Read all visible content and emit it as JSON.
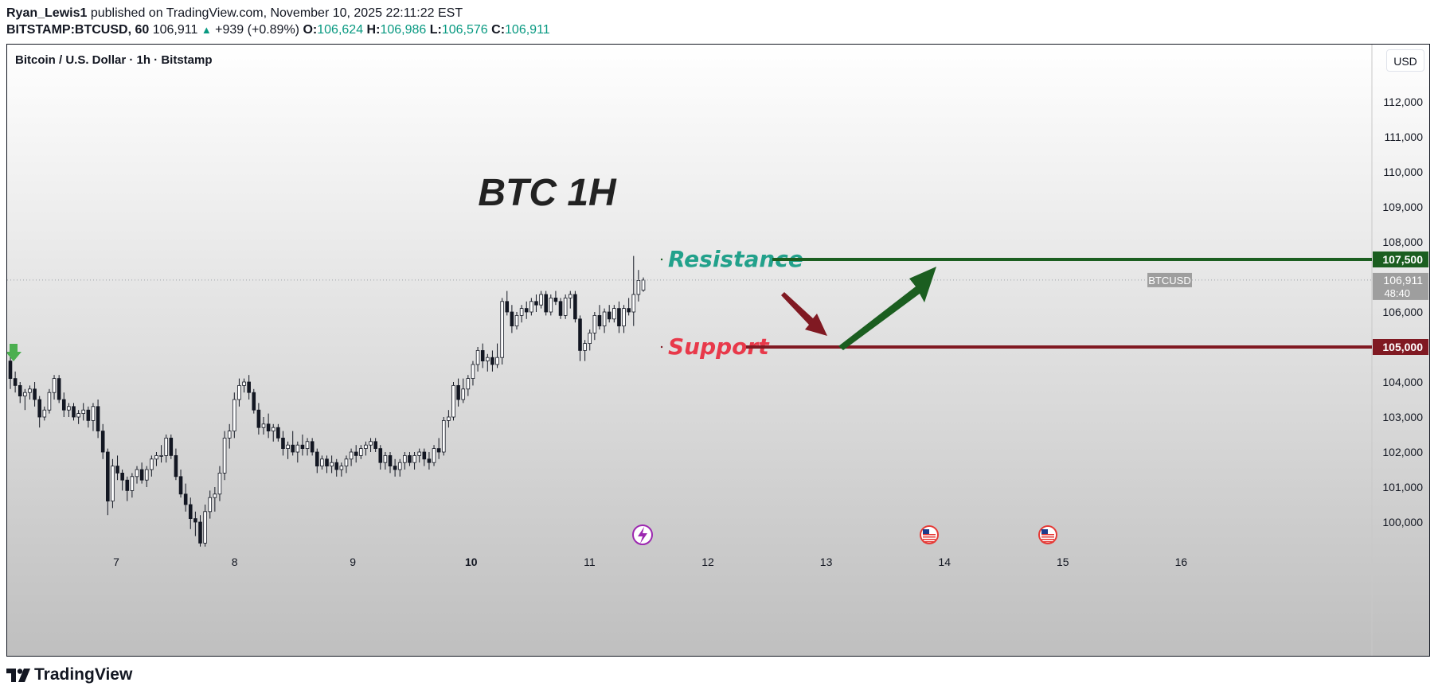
{
  "header": {
    "publisher": "Ryan_Lewis1",
    "published_text": "published on TradingView.com, November 10, 2025 22:11:22 EST",
    "symbol": "BITSTAMP:BTCUSD, 60",
    "last": "106,911",
    "change": "+939 (+0.89%)",
    "o_label": "O:",
    "o_value": "106,624",
    "h_label": "H:",
    "h_value": "106,986",
    "l_label": "L:",
    "l_value": "106,576",
    "c_label": "C:",
    "c_value": "106,911"
  },
  "chart_title": "Bitcoin / U.S. Dollar · 1h · Bitstamp",
  "currency_button": "USD",
  "footer": {
    "brand": "TradingView"
  },
  "colors": {
    "up_teal": "#089981",
    "resistance": "#1b5e20",
    "support": "#801922",
    "resistance_text": "#22a18b",
    "support_text": "#e8394a",
    "candle_body": "#ffffff",
    "candle_border": "#131722"
  },
  "icons": [
    "tradingview-logo-icon",
    "flash-event-icon",
    "us-flag-icon",
    "green-down-arrow-icon"
  ],
  "chart_data": {
    "type": "candlestick",
    "title": "",
    "annotation_title": "BTC 1H",
    "x_ticks": [
      "7",
      "8",
      "9",
      "10",
      "11",
      "12",
      "13",
      "14",
      "15",
      "16"
    ],
    "y_ticks": [
      "100,000",
      "101,000",
      "102,000",
      "103,000",
      "104,000",
      "105,000",
      "106,000",
      "107,000",
      "108,000",
      "109,000",
      "110,000",
      "111,000",
      "112,000"
    ],
    "ylim": [
      99300,
      113500
    ],
    "levels": [
      {
        "name": "Resistance",
        "value": 107500,
        "label": "107,500"
      },
      {
        "name": "Support",
        "value": 105000,
        "label": "105,000"
      }
    ],
    "last_price": {
      "symbol": "BTCUSD",
      "value": 106911,
      "label": "106,911",
      "countdown": "48:40"
    },
    "candles": [
      [
        104600,
        104800,
        103800,
        104100
      ],
      [
        104100,
        104300,
        103700,
        103900
      ],
      [
        103900,
        104000,
        103400,
        103600
      ],
      [
        103600,
        103800,
        103200,
        103700
      ],
      [
        103700,
        103900,
        103500,
        103800
      ],
      [
        103800,
        104000,
        103300,
        103500
      ],
      [
        103500,
        103600,
        102700,
        103000
      ],
      [
        103000,
        103300,
        102900,
        103200
      ],
      [
        103200,
        103800,
        103100,
        103700
      ],
      [
        103700,
        104200,
        103500,
        104100
      ],
      [
        104100,
        104200,
        103400,
        103500
      ],
      [
        103500,
        103700,
        103000,
        103200
      ],
      [
        103200,
        103400,
        103000,
        103300
      ],
      [
        103300,
        103400,
        102900,
        103000
      ],
      [
        103000,
        103200,
        102800,
        103100
      ],
      [
        103100,
        103400,
        102900,
        103200
      ],
      [
        103200,
        103300,
        102700,
        102900
      ],
      [
        102900,
        103400,
        102600,
        103300
      ],
      [
        103300,
        103500,
        102400,
        102600
      ],
      [
        102600,
        102800,
        101800,
        102000
      ],
      [
        102000,
        102100,
        100200,
        100600
      ],
      [
        100600,
        101800,
        100400,
        101600
      ],
      [
        101600,
        101900,
        101200,
        101400
      ],
      [
        101400,
        101500,
        100900,
        101200
      ],
      [
        101200,
        101300,
        100600,
        100900
      ],
      [
        100900,
        101400,
        100700,
        101300
      ],
      [
        101300,
        101600,
        101100,
        101500
      ],
      [
        101500,
        101700,
        101100,
        101200
      ],
      [
        101200,
        101600,
        101000,
        101500
      ],
      [
        101500,
        101900,
        101300,
        101800
      ],
      [
        101800,
        102000,
        101600,
        101900
      ],
      [
        101900,
        102200,
        101700,
        101900
      ],
      [
        101900,
        102500,
        101700,
        102400
      ],
      [
        102400,
        102500,
        101800,
        101900
      ],
      [
        101900,
        102100,
        101200,
        101300
      ],
      [
        101300,
        101500,
        100700,
        100800
      ],
      [
        100800,
        101100,
        100300,
        100500
      ],
      [
        100500,
        100700,
        99800,
        100100
      ],
      [
        100100,
        100300,
        99600,
        100000
      ],
      [
        100000,
        100200,
        99300,
        99400
      ],
      [
        99400,
        100500,
        99300,
        100300
      ],
      [
        100300,
        100900,
        100100,
        100700
      ],
      [
        100700,
        101000,
        100300,
        100800
      ],
      [
        100800,
        101600,
        100600,
        101400
      ],
      [
        101400,
        102600,
        101200,
        102400
      ],
      [
        102400,
        102800,
        102100,
        102600
      ],
      [
        102600,
        103700,
        102400,
        103500
      ],
      [
        103500,
        104100,
        103300,
        103900
      ],
      [
        103900,
        104100,
        103700,
        104000
      ],
      [
        104000,
        104200,
        103500,
        103700
      ],
      [
        103700,
        103800,
        103100,
        103200
      ],
      [
        103200,
        103400,
        102500,
        102700
      ],
      [
        102700,
        103000,
        102500,
        102800
      ],
      [
        102800,
        103100,
        102400,
        102600
      ],
      [
        102600,
        102800,
        102300,
        102700
      ],
      [
        102700,
        102800,
        102300,
        102400
      ],
      [
        102400,
        102600,
        101900,
        102100
      ],
      [
        102100,
        102300,
        101800,
        102200
      ],
      [
        102200,
        102600,
        101900,
        102000
      ],
      [
        102000,
        102300,
        101700,
        102200
      ],
      [
        102200,
        102500,
        101900,
        102100
      ],
      [
        102100,
        102400,
        101900,
        102300
      ],
      [
        102300,
        102400,
        101900,
        102000
      ],
      [
        102000,
        102100,
        101400,
        101600
      ],
      [
        101600,
        101900,
        101500,
        101800
      ],
      [
        101800,
        101900,
        101400,
        101600
      ],
      [
        101600,
        101900,
        101400,
        101700
      ],
      [
        101700,
        101800,
        101300,
        101500
      ],
      [
        101500,
        101700,
        101300,
        101600
      ],
      [
        101600,
        101900,
        101400,
        101800
      ],
      [
        101800,
        102100,
        101600,
        102000
      ],
      [
        102000,
        102200,
        101700,
        101900
      ],
      [
        101900,
        102200,
        101800,
        102100
      ],
      [
        102100,
        102300,
        101900,
        102200
      ],
      [
        102200,
        102400,
        102000,
        102300
      ],
      [
        102300,
        102400,
        102000,
        102100
      ],
      [
        102100,
        102200,
        101500,
        101700
      ],
      [
        101700,
        102000,
        101500,
        101900
      ],
      [
        101900,
        102000,
        101400,
        101600
      ],
      [
        101600,
        101800,
        101300,
        101500
      ],
      [
        101500,
        101800,
        101300,
        101700
      ],
      [
        101700,
        102000,
        101500,
        101900
      ],
      [
        101900,
        102000,
        101600,
        101700
      ],
      [
        101700,
        102000,
        101500,
        101900
      ],
      [
        101900,
        102100,
        101700,
        102000
      ],
      [
        102000,
        102100,
        101600,
        101800
      ],
      [
        101800,
        102000,
        101500,
        101700
      ],
      [
        101700,
        102200,
        101600,
        102100
      ],
      [
        102100,
        102400,
        101800,
        102000
      ],
      [
        102000,
        103000,
        101900,
        102900
      ],
      [
        102900,
        103200,
        102700,
        103000
      ],
      [
        103000,
        104000,
        102900,
        103900
      ],
      [
        103900,
        104100,
        103300,
        103500
      ],
      [
        103500,
        104100,
        103400,
        103800
      ],
      [
        103800,
        104200,
        103600,
        104100
      ],
      [
        104100,
        104600,
        103900,
        104500
      ],
      [
        104500,
        105000,
        104300,
        104900
      ],
      [
        104900,
        105100,
        104400,
        104600
      ],
      [
        104600,
        104800,
        104300,
        104700
      ],
      [
        104700,
        104900,
        104300,
        104500
      ],
      [
        104500,
        105100,
        104400,
        104700
      ],
      [
        104700,
        106400,
        104500,
        106300
      ],
      [
        106300,
        106600,
        105900,
        106000
      ],
      [
        106000,
        106200,
        105400,
        105600
      ],
      [
        105600,
        106000,
        105500,
        105900
      ],
      [
        105900,
        106200,
        105700,
        106100
      ],
      [
        106100,
        106300,
        105800,
        106000
      ],
      [
        106000,
        106400,
        105900,
        106300
      ],
      [
        106300,
        106500,
        106000,
        106200
      ],
      [
        106200,
        106600,
        106100,
        106500
      ],
      [
        106500,
        106600,
        105900,
        106000
      ],
      [
        106000,
        106500,
        105900,
        106400
      ],
      [
        106400,
        106600,
        106200,
        106300
      ],
      [
        106300,
        106400,
        105800,
        105900
      ],
      [
        105900,
        106500,
        105800,
        106400
      ],
      [
        106400,
        106600,
        106100,
        106500
      ],
      [
        106500,
        106600,
        105700,
        105800
      ],
      [
        105800,
        105900,
        104600,
        104900
      ],
      [
        104900,
        105200,
        104600,
        105100
      ],
      [
        105100,
        105500,
        104900,
        105400
      ],
      [
        105400,
        106000,
        105200,
        105900
      ],
      [
        105900,
        106200,
        105500,
        105600
      ],
      [
        105600,
        106100,
        105400,
        106000
      ],
      [
        106000,
        106200,
        105700,
        105800
      ],
      [
        105800,
        106200,
        105700,
        106100
      ],
      [
        106100,
        106300,
        105400,
        105600
      ],
      [
        105600,
        106200,
        105400,
        106100
      ],
      [
        106100,
        106400,
        105900,
        106000
      ],
      [
        106000,
        107600,
        105600,
        106500
      ],
      [
        106500,
        107200,
        106300,
        106900
      ],
      [
        106624,
        106986,
        106576,
        106911
      ]
    ]
  }
}
